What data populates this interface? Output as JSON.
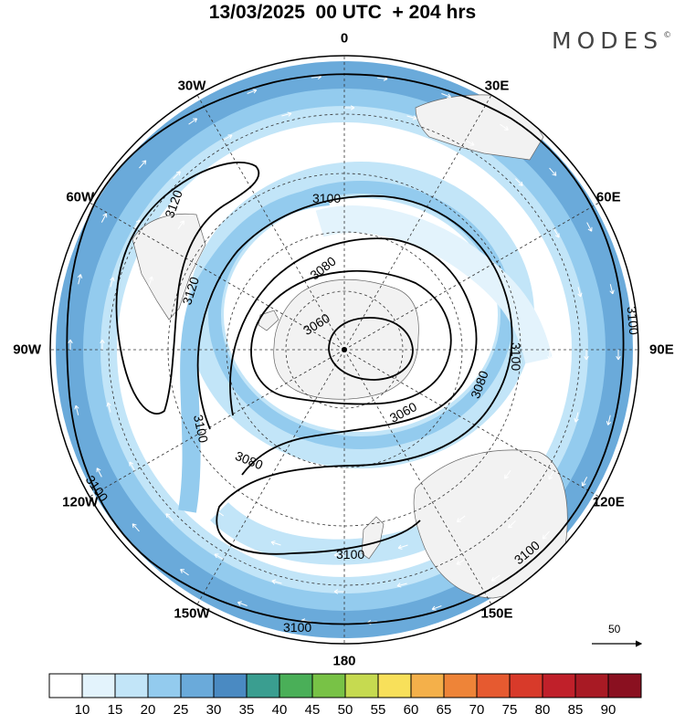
{
  "title": "13/03/2025  00 UTC  + 204 hrs",
  "brand": "MODES",
  "brand_mark": "©",
  "longitude_labels": [
    {
      "id": "0",
      "text": "0",
      "lon": 0
    },
    {
      "id": "30e",
      "text": "30E",
      "lon": 30
    },
    {
      "id": "60e",
      "text": "60E",
      "lon": 60
    },
    {
      "id": "90e",
      "text": "90E",
      "lon": 90
    },
    {
      "id": "120e",
      "text": "120E",
      "lon": 120
    },
    {
      "id": "150e",
      "text": "150E",
      "lon": 150
    },
    {
      "id": "180",
      "text": "180",
      "lon": 180
    },
    {
      "id": "150w",
      "text": "150W",
      "lon": -150
    },
    {
      "id": "120w",
      "text": "120W",
      "lon": -120
    },
    {
      "id": "90w",
      "text": "90W",
      "lon": -90
    },
    {
      "id": "60w",
      "text": "60W",
      "lon": -60
    },
    {
      "id": "30w",
      "text": "30W",
      "lon": -30
    }
  ],
  "contour_labels": [
    "3100",
    "3120",
    "3120",
    "3100",
    "3080",
    "3060",
    "3060",
    "3080",
    "3100",
    "3080",
    "3100",
    "3100",
    "3100",
    "3100",
    "3100",
    "3100"
  ],
  "reference_vector": {
    "value": "50"
  },
  "colorbar": {
    "ticks": [
      "10",
      "15",
      "20",
      "25",
      "30",
      "35",
      "40",
      "45",
      "50",
      "55",
      "60",
      "65",
      "70",
      "75",
      "80",
      "85",
      "90"
    ],
    "colors": [
      "#ffffff",
      "#e3f3fc",
      "#c2e5f8",
      "#93cbee",
      "#6aaada",
      "#4a8ac2",
      "#3a9e90",
      "#4aaf58",
      "#78c246",
      "#c6da50",
      "#f8e05a",
      "#f4b04a",
      "#ee8438",
      "#e65a30",
      "#d83a2a",
      "#c0202a",
      "#a81a24",
      "#8a1020"
    ]
  },
  "field": {
    "wind_speed_levels": [
      10,
      15,
      20,
      25,
      30
    ],
    "jet_colors": [
      "#e3f3fc",
      "#c2e5f8",
      "#93cbee",
      "#6aaada"
    ],
    "land_color": "#f2f2f2"
  }
}
